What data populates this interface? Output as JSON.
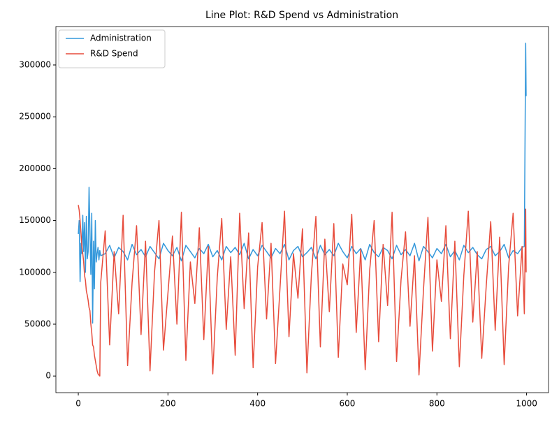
{
  "chart_data": {
    "type": "line",
    "title": "Line Plot: R&D Spend vs Administration",
    "x": [
      0,
      2,
      4,
      6,
      8,
      10,
      12,
      14,
      16,
      18,
      20,
      22,
      24,
      26,
      28,
      30,
      32,
      34,
      36,
      38,
      40,
      42,
      44,
      46,
      48,
      50,
      60,
      70,
      80,
      90,
      100,
      110,
      120,
      130,
      140,
      150,
      160,
      170,
      180,
      190,
      200,
      210,
      220,
      230,
      240,
      250,
      260,
      270,
      280,
      290,
      300,
      310,
      320,
      330,
      340,
      350,
      360,
      370,
      380,
      390,
      400,
      410,
      420,
      430,
      440,
      450,
      460,
      470,
      480,
      490,
      500,
      510,
      520,
      530,
      540,
      550,
      560,
      570,
      580,
      590,
      600,
      610,
      620,
      630,
      640,
      650,
      660,
      670,
      680,
      690,
      700,
      710,
      720,
      730,
      740,
      750,
      760,
      770,
      780,
      790,
      800,
      810,
      820,
      830,
      840,
      850,
      860,
      870,
      880,
      890,
      900,
      910,
      920,
      930,
      940,
      950,
      960,
      970,
      980,
      990,
      995,
      998,
      999
    ],
    "series": [
      {
        "name": "Administration",
        "color": "#3498db",
        "values": [
          137000,
          150000,
          91000,
          128000,
          118000,
          155000,
          120000,
          148000,
          100000,
          154000,
          113000,
          120000,
          182000,
          140000,
          98000,
          157000,
          51000,
          130000,
          84000,
          150000,
          110000,
          118000,
          124000,
          112000,
          121000,
          116000,
          118000,
          126000,
          114000,
          124000,
          120000,
          112000,
          127000,
          117000,
          122000,
          115000,
          125000,
          119000,
          113000,
          128000,
          121000,
          116000,
          124000,
          111000,
          126000,
          120000,
          114000,
          123000,
          118000,
          127000,
          115000,
          121000,
          112000,
          125000,
          119000,
          124000,
          117000,
          128000,
          113000,
          122000,
          116000,
          126000,
          120000,
          114000,
          123000,
          118000,
          127000,
          112000,
          121000,
          125000,
          115000,
          119000,
          124000,
          113000,
          126000,
          117000,
          122000,
          116000,
          128000,
          120000,
          114000,
          125000,
          118000,
          123000,
          112000,
          127000,
          119000,
          115000,
          124000,
          121000,
          113000,
          126000,
          117000,
          122000,
          116000,
          128000,
          111000,
          125000,
          120000,
          114000,
          123000,
          118000,
          127000,
          115000,
          121000,
          112000,
          126000,
          119000,
          124000,
          117000,
          113000,
          122000,
          125000,
          116000,
          120000,
          127000,
          114000,
          121000,
          118000,
          124000,
          125000,
          321000,
          270000
        ]
      },
      {
        "name": "R&D Spend",
        "color": "#e74c3c",
        "values": [
          165000,
          160000,
          150000,
          138000,
          125000,
          118000,
          110000,
          97000,
          92000,
          82000,
          78000,
          73000,
          66000,
          63000,
          50000,
          42000,
          30000,
          28000,
          20000,
          15000,
          10000,
          5000,
          2000,
          1000,
          0,
          90000,
          140000,
          30000,
          120000,
          60000,
          155000,
          10000,
          90000,
          145000,
          40000,
          130000,
          5000,
          100000,
          150000,
          25000,
          80000,
          135000,
          50000,
          158000,
          15000,
          110000,
          70000,
          143000,
          35000,
          125000,
          2000,
          95000,
          152000,
          45000,
          115000,
          20000,
          157000,
          65000,
          138000,
          8000,
          105000,
          148000,
          55000,
          128000,
          12000,
          85000,
          159000,
          38000,
          118000,
          75000,
          142000,
          3000,
          98000,
          154000,
          28000,
          132000,
          62000,
          147000,
          18000,
          108000,
          88000,
          156000,
          42000,
          122000,
          6000,
          102000,
          150000,
          33000,
          127000,
          68000,
          158000,
          14000,
          93000,
          139000,
          48000,
          116000,
          1000,
          83000,
          153000,
          24000,
          112000,
          72000,
          145000,
          36000,
          130000,
          9000,
          97000,
          159000,
          52000,
          120000,
          17000,
          87000,
          149000,
          44000,
          134000,
          11000,
          106000,
          157000,
          58000,
          125000,
          60000,
          161000,
          100000
        ]
      }
    ],
    "xlim": [
      -49.95,
      1048.95
    ],
    "ylim": [
      -16050,
      337050
    ],
    "xticks": [
      0,
      200,
      400,
      600,
      800,
      1000
    ],
    "yticks": [
      0,
      50000,
      100000,
      150000,
      200000,
      250000,
      300000
    ],
    "legend": "upper left"
  }
}
